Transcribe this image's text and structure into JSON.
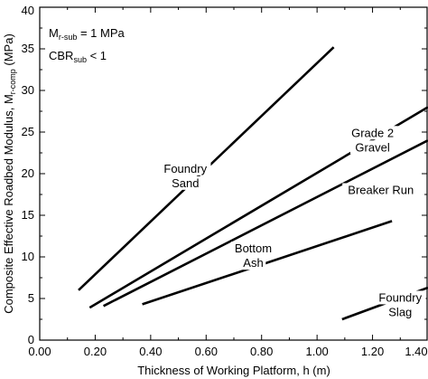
{
  "chart_data": {
    "type": "line",
    "title": "",
    "xlabel": "Thickness of Working Platform, h (m)",
    "ylabel": {
      "prefix": "Composite Effective Roadbed Modulus, M",
      "sub": "r-comp",
      "suffix": " (MPa)"
    },
    "xlim": [
      0,
      1.4
    ],
    "ylim": [
      0,
      40
    ],
    "xticks": [
      "0.00",
      "0.20",
      "0.40",
      "0.60",
      "0.80",
      "1.00",
      "1.20",
      "1.40"
    ],
    "yticks": [
      "0",
      "5",
      "10",
      "15",
      "20",
      "25",
      "30",
      "35",
      "40"
    ],
    "grid": false,
    "legend": "none",
    "annotations": [
      {
        "prefix": "M",
        "sub": "r-sub",
        "suffix": " = 1 MPa"
      },
      {
        "prefix": "CBR",
        "sub": "sub",
        "suffix": " < 1"
      }
    ],
    "series": [
      {
        "name": "Foundry Sand",
        "label_lines": [
          "Foundry",
          "Sand"
        ],
        "x": [
          0.14,
          1.06
        ],
        "y": [
          6.0,
          35.2
        ],
        "label_at": [
          0.525,
          19.8
        ]
      },
      {
        "name": "Grade 2 Gravel",
        "label_lines": [
          "Grade 2",
          "Gravel"
        ],
        "x": [
          0.18,
          1.4
        ],
        "y": [
          3.9,
          28.0
        ],
        "label_at": [
          1.2,
          24.1
        ]
      },
      {
        "name": "Breaker Run",
        "label_lines": [
          "Breaker Run"
        ],
        "x": [
          0.23,
          1.4
        ],
        "y": [
          4.1,
          24.0
        ],
        "label_at": [
          1.23,
          18.1
        ]
      },
      {
        "name": "Bottom Ash",
        "label_lines": [
          "Bottom",
          "Ash"
        ],
        "x": [
          0.37,
          1.27
        ],
        "y": [
          4.3,
          14.3
        ],
        "label_at": [
          0.77,
          10.2
        ]
      },
      {
        "name": "Foundry Slag",
        "label_lines": [
          "Foundry",
          "Slag"
        ],
        "x": [
          1.09,
          1.4
        ],
        "y": [
          2.5,
          6.3
        ],
        "label_at": [
          1.3,
          4.3
        ]
      }
    ]
  }
}
